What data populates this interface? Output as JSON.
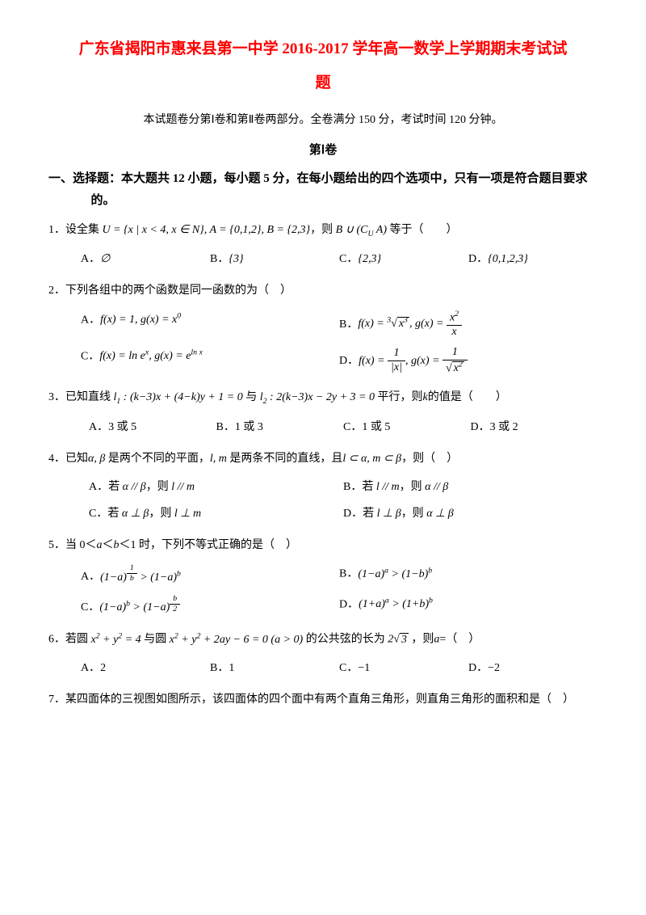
{
  "title_line1": "广东省揭阳市惠来县第一中学 2016-2017 学年高一数学上学期期末考试试",
  "title_line2": "题",
  "subtitle": "本试题卷分第Ⅰ卷和第Ⅱ卷两部分。全卷满分 150 分，考试时间 120 分钟。",
  "part_header": "第Ⅰ卷",
  "section1_desc": "一、选择题：本大题共 12 小题，每小题 5 分，在每小题给出的四个选项中，只有一项是符合题目要求的。",
  "q1": {
    "stem_pre": "1．设全集",
    "stem_math": "U = {x | x < 4, x ∈ N}, A = {0,1,2}, B = {2,3}",
    "stem_mid": "，则",
    "stem_math2": "B ∪ (C_U A)",
    "stem_post": "等于（　　）",
    "A_label": "A．",
    "A_val": "∅",
    "B_label": "B．",
    "B_val": "{3}",
    "C_label": "C．",
    "C_val": "{2,3}",
    "D_label": "D．",
    "D_val": "{0,1,2,3}"
  },
  "q2": {
    "stem": "2．下列各组中的两个函数是同一函数的为（　）",
    "A_label": "A．",
    "B_label": "B．",
    "C_label": "C．",
    "D_label": "D．"
  },
  "q3": {
    "stem_pre": "3．已知直线",
    "stem_mid": "与",
    "stem_post": "平行，则",
    "stem_k": "k",
    "stem_end": "的值是（　　）",
    "A_label": "A．",
    "A_val": "3 或 5",
    "B_label": "B．",
    "B_val": "1 或 3",
    "C_label": "C．",
    "C_val": "1 或 5",
    "D_label": "D．",
    "D_val": "3 或 2"
  },
  "q4": {
    "stem_pre": "4．已知",
    "stem_ab": "α, β",
    "stem_mid1": "是两个不同的平面，",
    "stem_lm": "l, m",
    "stem_mid2": "是两条不同的直线，且",
    "stem_cond": "l ⊂ α, m ⊂ β",
    "stem_post": "，则（　）",
    "A_label": "A．若 ",
    "A_cond": "α // β",
    "A_mid": "，则 ",
    "A_res": "l // m",
    "B_label": "B．若 ",
    "B_cond": "l // m",
    "B_mid": "，则 ",
    "B_res": "α // β",
    "C_label": "C．若 ",
    "C_cond": "α ⊥ β",
    "C_mid": "，则 ",
    "C_res": "l ⊥ m",
    "D_label": "D．若 ",
    "D_cond": "l ⊥ β",
    "D_mid": "，则 ",
    "D_res": "α ⊥ β"
  },
  "q5": {
    "stem_pre": "5．当 0＜",
    "stem_a": "a",
    "stem_lt": "＜",
    "stem_b": "b",
    "stem_post": "＜1 时，下列不等式正确的是（　）",
    "A_label": "A．",
    "B_label": "B．",
    "C_label": "C．",
    "D_label": "D．"
  },
  "q6": {
    "stem_pre": "6．若圆",
    "stem_c1": "x² + y² = 4",
    "stem_mid": "与圆",
    "stem_c2": "x² + y² + 2ay − 6 = 0 (a > 0)",
    "stem_mid2": "的公共弦的长为",
    "stem_val": "2√3",
    "stem_post": "，则",
    "stem_a": "a",
    "stem_end": "=（　）",
    "A_label": "A．",
    "A_val": "2",
    "B_label": "B．",
    "B_val": "1",
    "C_label": "C．",
    "C_val": "−1",
    "D_label": "D．",
    "D_val": "−2"
  },
  "q7": {
    "stem": "7．某四面体的三视图如图所示，该四面体的四个面中有两个直角三角形，则直角三角形的面积和是（　）"
  },
  "colors": {
    "title": "#ff0000",
    "text": "#000000",
    "background": "#ffffff"
  },
  "fonts": {
    "body": "SimSun",
    "body_size": 15,
    "title_size": 19
  }
}
